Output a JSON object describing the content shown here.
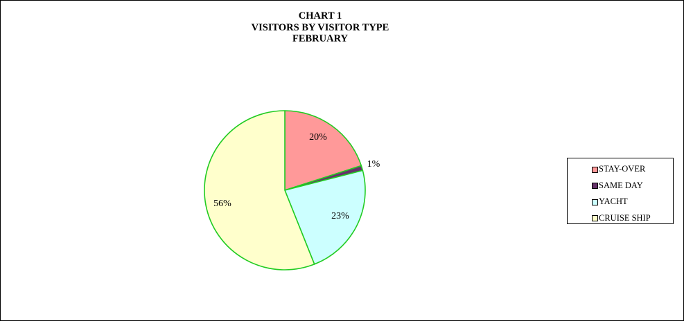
{
  "chart_data": {
    "type": "pie",
    "title": "CHART 1",
    "subtitle": "VISITORS BY VISITOR TYPE",
    "period": "FEBRUARY",
    "legend_position": "right",
    "slices": [
      {
        "name": "STAY-OVER",
        "value": 20,
        "label": "20%",
        "color": "#ff9999"
      },
      {
        "name": "SAME DAY",
        "value": 1,
        "label": "1%",
        "color": "#66336a"
      },
      {
        "name": "YACHT",
        "value": 23,
        "label": "23%",
        "color": "#ccffff"
      },
      {
        "name": "CRUISE SHIP",
        "value": 56,
        "label": "56%",
        "color": "#ffffcc"
      }
    ],
    "slice_border_color": "#22cc22"
  }
}
